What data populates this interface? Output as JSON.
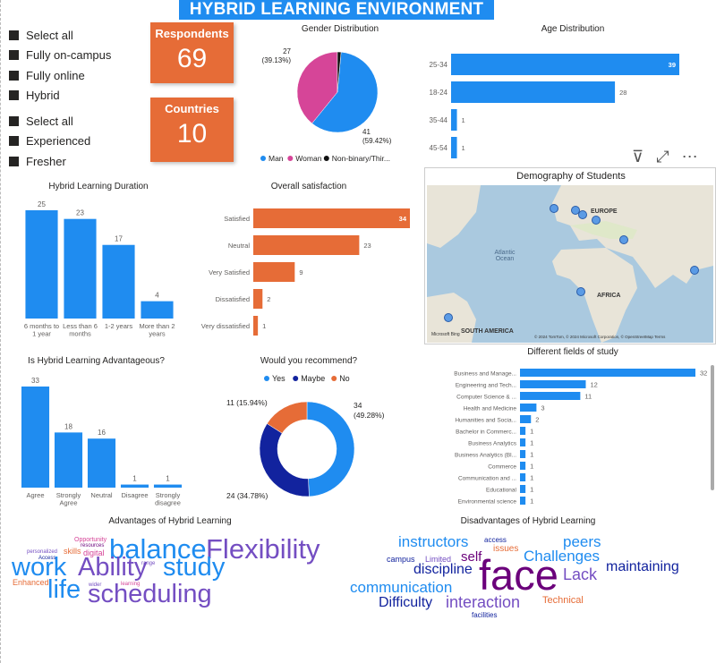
{
  "title": "HYBRID LEARNING ENVIRONMENT",
  "slicer1": [
    "Select all",
    "Fully on-campus",
    "Fully online",
    "Hybrid"
  ],
  "slicer2": [
    "Select all",
    "Experienced",
    "Fresher"
  ],
  "kpis": {
    "respondents_label": "Respondents",
    "respondents_value": "69",
    "countries_label": "Countries",
    "countries_value": "10"
  },
  "colors": {
    "blue": "#1f8cf0",
    "orange": "#e66c37",
    "pink": "#d64598",
    "navy": "#12239e",
    "black": "#111111"
  },
  "map": {
    "title": "Demography of Students",
    "labels": [
      "EUROPE",
      "Atlantic Ocean",
      "AFRICA",
      "SOUTH AMERICA"
    ],
    "credit": "© 2024 TomTom, © 2024 Microsoft Corporation, © OpenStreetMap  Terms",
    "brand": "Microsoft Bing"
  },
  "advantages_wordcloud": {
    "title": "Advantages of Hybrid Learning",
    "words": [
      "Flexibility",
      "balance",
      "work",
      "Ability",
      "study",
      "life",
      "scheduling",
      "Opportunity",
      "resources",
      "personalized",
      "skills",
      "digital",
      "Access",
      "range",
      "Enhanced",
      "wider",
      "learning"
    ]
  },
  "disadvantages_wordcloud": {
    "title": "Disadvantages of Hybrid Learning",
    "words": [
      "instructors",
      "access",
      "peers",
      "campus",
      "Limited",
      "self",
      "issues",
      "Challenges",
      "discipline",
      "face",
      "maintaining",
      "Lack",
      "communication",
      "Difficulty",
      "interaction",
      "Technical",
      "facilities"
    ]
  },
  "chart_data": [
    {
      "id": "gender",
      "type": "pie",
      "title": "Gender Distribution",
      "categories": [
        "Man",
        "Woman",
        "Non-binary/Thir..."
      ],
      "values": [
        41,
        27,
        1
      ],
      "data_labels": [
        "41\n(59.42%)",
        "27\n(39.13%)",
        ""
      ],
      "legend": "bottom"
    },
    {
      "id": "age",
      "type": "bar",
      "orientation": "horizontal",
      "title": "Age Distribution",
      "categories": [
        "25-34",
        "18-24",
        "35-44",
        "45-54"
      ],
      "values": [
        39,
        28,
        1,
        1
      ]
    },
    {
      "id": "duration",
      "type": "bar",
      "title": "Hybrid Learning Duration",
      "categories": [
        "6 months to 1 year",
        "Less than 6 months",
        "1-2 years",
        "More than 2 years"
      ],
      "values": [
        25,
        23,
        17,
        4
      ]
    },
    {
      "id": "satisfaction",
      "type": "bar",
      "orientation": "horizontal",
      "title": "Overall satisfaction",
      "categories": [
        "Satisfied",
        "Neutral",
        "Very Satisfied",
        "Dissatisfied",
        "Very dissatisfied"
      ],
      "values": [
        34,
        23,
        9,
        2,
        1
      ]
    },
    {
      "id": "advantageous",
      "type": "bar",
      "title": "Is Hybrid Learning Advantageous?",
      "categories": [
        "Agree",
        "Strongly Agree",
        "Neutral",
        "Disagree",
        "Strongly disagree"
      ],
      "values": [
        33,
        18,
        16,
        1,
        1
      ]
    },
    {
      "id": "recommend",
      "type": "pie",
      "variant": "donut",
      "title": "Would you recommend?",
      "categories": [
        "Yes",
        "Maybe",
        "No"
      ],
      "values": [
        34,
        24,
        11
      ],
      "data_labels": [
        "34\n(49.28%)",
        "24 (34.78%)",
        "11 (15.94%)"
      ],
      "legend": "top"
    },
    {
      "id": "fields",
      "type": "bar",
      "orientation": "horizontal",
      "title": "Different fields of study",
      "categories": [
        "Business and Manage...",
        "Engineering and Tech...",
        "Computer Science & ...",
        "Health and Medicine",
        "Humanities and Socia...",
        "Bachelor in Commerc...",
        "Business Analytics",
        "Business Analytics (Bl...",
        "Commerce",
        "Communication and ...",
        "Educational",
        "Environmental science"
      ],
      "values": [
        32,
        12,
        11,
        3,
        2,
        1,
        1,
        1,
        1,
        1,
        1,
        1
      ]
    }
  ]
}
